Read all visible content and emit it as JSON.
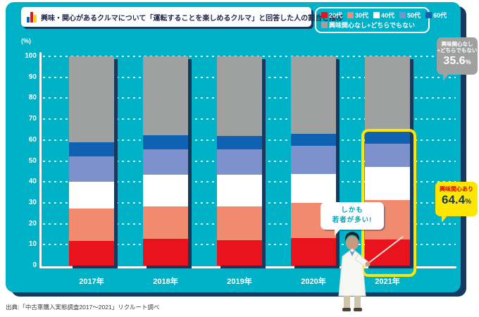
{
  "page": {
    "background": "#ffffff"
  },
  "panel": {
    "background": "#00b2c8",
    "shadow_color": "#16395e",
    "highlight_color": "#ffe600"
  },
  "header": {
    "title": "興味・関心があるクルマについて「運転することを楽しめるクルマ」と回答した人の割合と推移",
    "icon": "bar-chart-icon",
    "icon_colors": [
      "#0e62b1",
      "#e8131d",
      "#ffd400"
    ]
  },
  "axis": {
    "unit": "(%)"
  },
  "chart_data": {
    "type": "bar",
    "stacked": true,
    "title": "興味・関心があるクルマについて「運転することを楽しめるクルマ」と回答した人の割合と推移",
    "categories": [
      "2017年",
      "2018年",
      "2019年",
      "2020年",
      "2021年"
    ],
    "series": [
      {
        "name": "20代",
        "color": "#e8131d",
        "values": [
          11.8,
          12.7,
          12.1,
          13.0,
          12.5
        ]
      },
      {
        "name": "30代",
        "color": "#f18b70",
        "values": [
          15.5,
          15.5,
          16.1,
          16.9,
          18.8
        ]
      },
      {
        "name": "40代",
        "color": "#ffffff",
        "values": [
          12.8,
          15.1,
          15.1,
          14.0,
          15.9
        ]
      },
      {
        "name": "50代",
        "color": "#7d92cc",
        "values": [
          12.1,
          12.4,
          12.4,
          13.4,
          11.0
        ]
      },
      {
        "name": "60代",
        "color": "#0e62b1",
        "values": [
          6.7,
          6.7,
          6.3,
          5.7,
          6.2
        ]
      },
      {
        "name": "興味関心なし+どちらでもない",
        "color": "#9fa0a0",
        "values": [
          41.1,
          37.6,
          38.0,
          37.0,
          35.6
        ]
      }
    ],
    "ylabel": "(%)",
    "ylim": [
      0,
      100
    ],
    "yticks": [
      0,
      10,
      20,
      30,
      40,
      50,
      60,
      70,
      80,
      90,
      100
    ],
    "grid": "dotted horizontal white",
    "legend_position": "top-right",
    "highlight": {
      "category": "2021年",
      "style": "yellow rounded box around interest segments"
    },
    "annotations": [
      {
        "text": "興味関心なし+どちらでもない",
        "value": 35.6,
        "unit": "%",
        "applies_to": "2021年"
      },
      {
        "text": "興味関心あり",
        "value": 64.4,
        "unit": "%",
        "applies_to": "2021年"
      },
      {
        "text": "しかも若者が多い!",
        "applies_to": "2021年"
      }
    ]
  },
  "callouts": {
    "no_interest": {
      "line1": "興味関心なし",
      "line2": "+どちらでもない",
      "value": "35.6",
      "unit": "%"
    },
    "interest": {
      "label": "興味関心あり",
      "value": "64.4",
      "unit": "%"
    },
    "youth": {
      "line1": "しかも",
      "line2": "若者が多い!"
    }
  },
  "source": {
    "text": "出典:「中古車購入実態調査2017〜2021」リクルート調べ"
  }
}
